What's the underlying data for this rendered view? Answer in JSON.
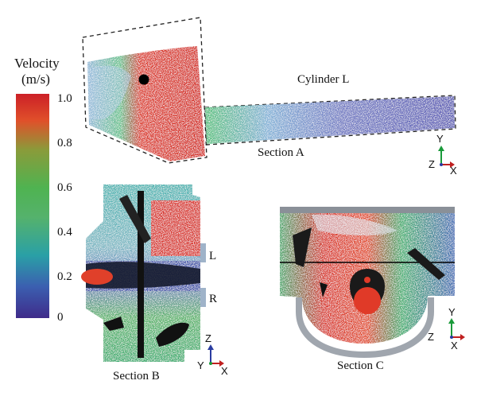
{
  "colorbar": {
    "title_line1": "Velocity",
    "title_line2": "(m/s)",
    "ticks": [
      "1.0",
      "0.8",
      "0.6",
      "0.4",
      "0.2",
      "0"
    ],
    "stops": [
      "#cc2027",
      "#e0502a",
      "#8a9b3a",
      "#4fb351",
      "#55b26c",
      "#2aa0a6",
      "#3b5fb0",
      "#3f2b8a"
    ]
  },
  "labels": {
    "cylinder": "Cylinder L",
    "section_a": "Section A",
    "section_b": "Section B",
    "section_c": "Section C",
    "l_marker": "L",
    "r_marker": "R"
  },
  "axes": {
    "a": {
      "up": "Y",
      "out": "Z",
      "right": "X"
    },
    "b": {
      "up": "Z",
      "out": "Y",
      "right": "X"
    },
    "c": {
      "up": "Y",
      "out": "Z",
      "right": "X"
    }
  }
}
